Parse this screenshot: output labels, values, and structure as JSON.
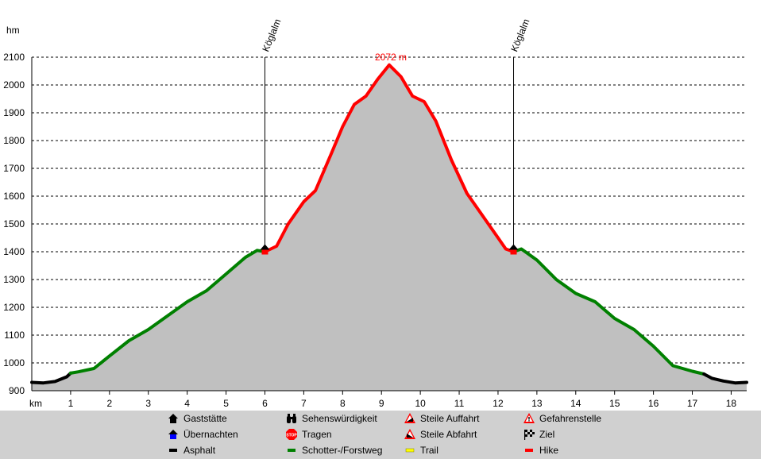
{
  "chart_data": {
    "type": "area",
    "ylabel": "hm",
    "xlabel": "km",
    "xlim": [
      0,
      18.4
    ],
    "ylim": [
      900,
      2100
    ],
    "x_ticks": [
      1,
      2,
      3,
      4,
      5,
      6,
      7,
      8,
      9,
      10,
      11,
      12,
      13,
      14,
      15,
      16,
      17,
      18
    ],
    "y_ticks": [
      900,
      1000,
      1100,
      1200,
      1300,
      1400,
      1500,
      1600,
      1700,
      1800,
      1900,
      2000,
      2100
    ],
    "grid": true,
    "fill_color": "#c0c0c0",
    "peak_label": "2072 m",
    "peak": {
      "x": 9.2,
      "y": 2072
    },
    "markers": [
      {
        "label": "Köglalm",
        "x": 6.0,
        "y": 1410
      },
      {
        "label": "Köglalm",
        "x": 12.4,
        "y": 1410
      }
    ],
    "profile": [
      [
        0.0,
        930
      ],
      [
        0.3,
        928
      ],
      [
        0.6,
        933
      ],
      [
        0.9,
        950
      ],
      [
        1.0,
        963
      ],
      [
        1.2,
        968
      ],
      [
        1.6,
        980
      ],
      [
        2.0,
        1025
      ],
      [
        2.5,
        1080
      ],
      [
        3.0,
        1120
      ],
      [
        3.5,
        1170
      ],
      [
        4.0,
        1220
      ],
      [
        4.5,
        1260
      ],
      [
        5.0,
        1320
      ],
      [
        5.5,
        1380
      ],
      [
        5.8,
        1405
      ],
      [
        6.0,
        1400
      ],
      [
        6.3,
        1420
      ],
      [
        6.6,
        1500
      ],
      [
        7.0,
        1580
      ],
      [
        7.3,
        1620
      ],
      [
        7.7,
        1750
      ],
      [
        8.0,
        1850
      ],
      [
        8.3,
        1930
      ],
      [
        8.6,
        1960
      ],
      [
        8.9,
        2020
      ],
      [
        9.2,
        2072
      ],
      [
        9.5,
        2030
      ],
      [
        9.8,
        1960
      ],
      [
        10.1,
        1940
      ],
      [
        10.4,
        1870
      ],
      [
        10.8,
        1730
      ],
      [
        11.2,
        1610
      ],
      [
        11.6,
        1530
      ],
      [
        12.0,
        1450
      ],
      [
        12.2,
        1410
      ],
      [
        12.4,
        1400
      ],
      [
        12.6,
        1410
      ],
      [
        13.0,
        1370
      ],
      [
        13.5,
        1300
      ],
      [
        14.0,
        1250
      ],
      [
        14.5,
        1220
      ],
      [
        15.0,
        1160
      ],
      [
        15.5,
        1120
      ],
      [
        16.0,
        1060
      ],
      [
        16.5,
        990
      ],
      [
        17.0,
        970
      ],
      [
        17.3,
        960
      ],
      [
        17.5,
        945
      ],
      [
        17.8,
        935
      ],
      [
        18.1,
        928
      ],
      [
        18.4,
        930
      ]
    ],
    "segments": [
      {
        "type": "Asphalt",
        "from": 0.0,
        "to": 1.0,
        "color": "#000000"
      },
      {
        "type": "Schotter-/Forstweg",
        "from": 1.0,
        "to": 6.0,
        "color": "#008000"
      },
      {
        "type": "Hike",
        "from": 6.0,
        "to": 12.4,
        "color": "#ff0000"
      },
      {
        "type": "Schotter-/Forstweg",
        "from": 12.4,
        "to": 17.3,
        "color": "#008000"
      },
      {
        "type": "Asphalt",
        "from": 17.3,
        "to": 18.4,
        "color": "#000000"
      }
    ]
  },
  "legend": [
    {
      "label": "Gaststätte",
      "icon": "house-black-icon",
      "color": "#000000"
    },
    {
      "label": "Übernachten",
      "icon": "house-blue-icon",
      "color": "#0000ff"
    },
    {
      "label": "Asphalt",
      "icon": "line-black-icon",
      "color": "#000000"
    },
    {
      "label": "Sehenswürdigkeit",
      "icon": "binoculars-icon",
      "color": "#000000"
    },
    {
      "label": "Tragen",
      "icon": "stop-sign-icon",
      "color": "#ff0000"
    },
    {
      "label": "Schotter-/Forstweg",
      "icon": "line-green-icon",
      "color": "#008000"
    },
    {
      "label": "Steile Auffahrt",
      "icon": "steep-up-icon",
      "color": "#ff0000"
    },
    {
      "label": "Steile Abfahrt",
      "icon": "steep-down-icon",
      "color": "#ff0000"
    },
    {
      "label": "Trail",
      "icon": "line-yellow-icon",
      "color": "#ffff00"
    },
    {
      "label": "Gefahrenstelle",
      "icon": "warning-icon",
      "color": "#ff0000"
    },
    {
      "label": "Ziel",
      "icon": "checkered-flag-icon",
      "color": "#000000"
    },
    {
      "label": "Hike",
      "icon": "line-red-icon",
      "color": "#ff0000"
    }
  ]
}
